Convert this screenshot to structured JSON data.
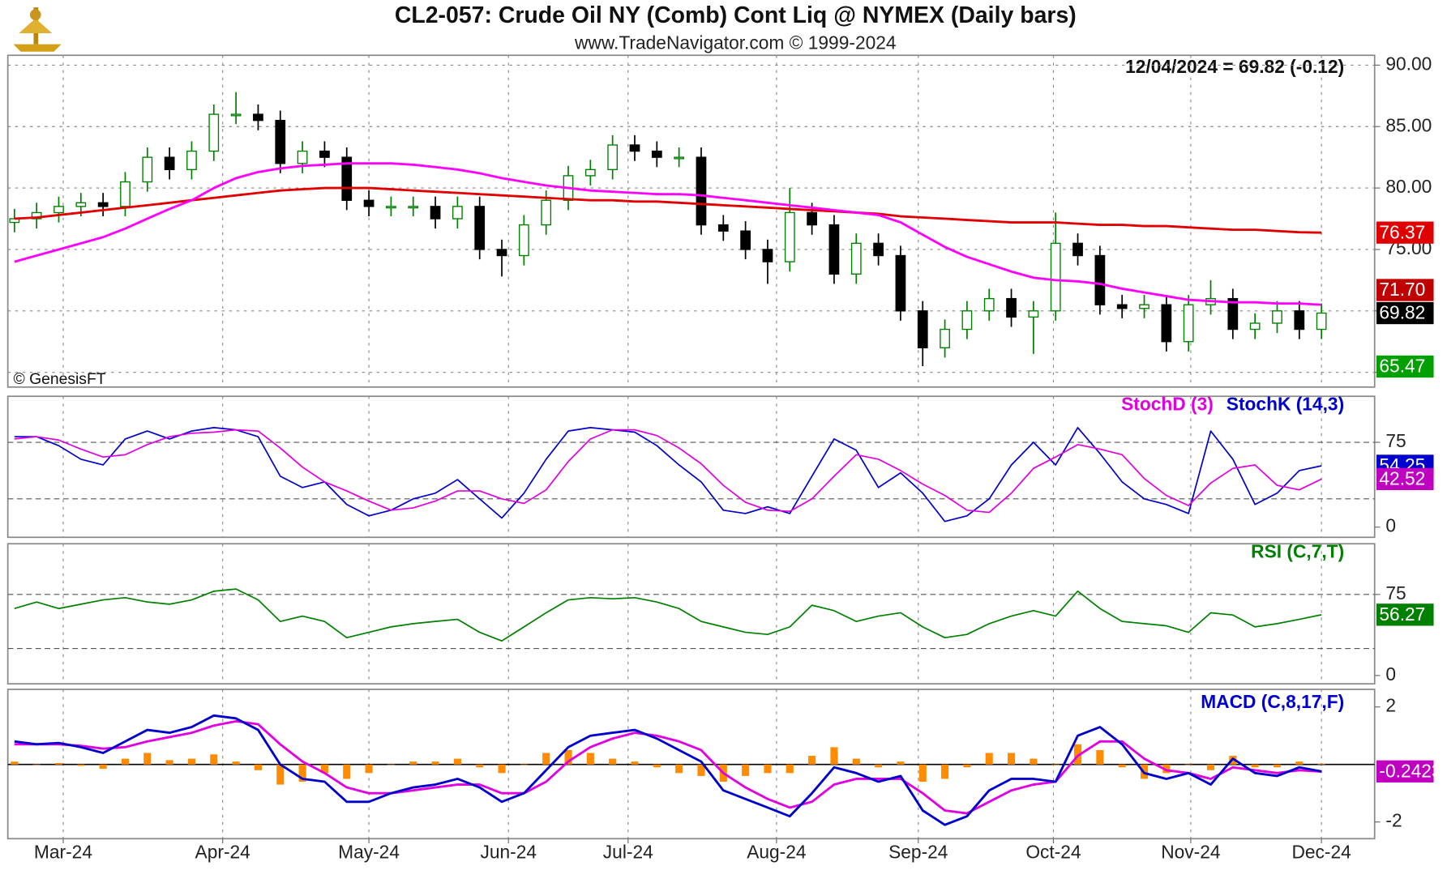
{
  "chart_data": [
    {
      "type": "candlestick",
      "title": "CL2-057:  Crude Oil NY (Comb) Cont Liq @ NYMEX  (Daily bars)",
      "subtitle": "www.TradeNavigator.com © 1999-2024",
      "annotation": "12/04/2024 = 69.82 (-0.12)",
      "credit": "© GenesisFT",
      "ylim": [
        63.8,
        90.8
      ],
      "yticks": [
        {
          "value": 65,
          "label": "65.00"
        },
        {
          "value": 70,
          "label": "70.00"
        },
        {
          "value": 75,
          "label": "75.00"
        },
        {
          "value": 80,
          "label": "80.00"
        },
        {
          "value": 85,
          "label": "85.00"
        },
        {
          "value": 90,
          "label": "90.00"
        }
      ],
      "grid": true,
      "up_color": "#008000",
      "down_color": "#000000",
      "open": [
        77.2,
        77.5,
        78,
        78.5,
        78.8,
        78.5,
        80.5,
        82.5,
        81.5,
        83,
        86,
        86,
        85.5,
        82,
        83,
        82.5,
        79,
        78.5,
        78.5,
        78.5,
        77.5,
        78.5,
        75,
        74.5,
        77,
        79,
        81,
        81.5,
        83.5,
        83,
        82.5,
        82.5,
        77,
        76.5,
        75,
        74,
        78,
        77,
        73,
        75.5,
        74.5,
        70,
        67,
        68.5,
        70,
        71,
        69.5,
        70,
        75.5,
        74.5,
        70.5,
        70.2,
        70.5,
        67.5,
        70.5,
        71,
        68.5,
        69,
        70,
        68.5
      ],
      "high": [
        78.3,
        78.8,
        79.3,
        79.6,
        79.6,
        81.3,
        83.3,
        83.3,
        83.8,
        86.8,
        87.8,
        86.8,
        86.3,
        83.8,
        83.8,
        83.3,
        79.8,
        79.3,
        79.3,
        79.3,
        79.3,
        79.3,
        75.8,
        77.8,
        79.8,
        81.8,
        82.3,
        84.3,
        84.3,
        83.8,
        83.3,
        83.3,
        77.8,
        77.3,
        75.8,
        80,
        78.8,
        77.8,
        76.3,
        76.3,
        75.3,
        70.8,
        69.3,
        70.8,
        71.8,
        71.8,
        70.8,
        78,
        76.3,
        75.3,
        71.3,
        71.3,
        71.3,
        71.3,
        72.5,
        71.8,
        69.8,
        70.8,
        70.8,
        70.6
      ],
      "low": [
        76.4,
        76.7,
        77.2,
        77.7,
        77.7,
        77.7,
        79.7,
        80.7,
        80.7,
        82.2,
        85.2,
        84.7,
        81.2,
        81.2,
        81.7,
        78.2,
        77.7,
        77.7,
        77.7,
        76.7,
        76.7,
        74.2,
        72.8,
        73.7,
        76.2,
        78.2,
        80.2,
        80.7,
        82.2,
        81.7,
        81.7,
        76.2,
        75.7,
        74.2,
        72.2,
        73.2,
        76.2,
        72.2,
        72.2,
        73.7,
        69.2,
        65.5,
        66.2,
        67.7,
        69.2,
        68.7,
        66.5,
        69.2,
        73.7,
        69.7,
        69.4,
        69.4,
        66.7,
        66.7,
        69.7,
        67.7,
        67.7,
        68.2,
        67.7,
        67.7
      ],
      "close": [
        77.5,
        78,
        78.5,
        78.8,
        78.5,
        80.5,
        82.5,
        81.5,
        83,
        86,
        86,
        85.5,
        82,
        83,
        82.5,
        79,
        78.5,
        78.5,
        78.5,
        77.5,
        78.5,
        75,
        74.5,
        77,
        79,
        81,
        81.5,
        83.5,
        83,
        82.5,
        82.5,
        77,
        76.5,
        75,
        74,
        78,
        77,
        73,
        75.5,
        74.5,
        70,
        67,
        68.5,
        70,
        71,
        69.5,
        70,
        75.5,
        74.5,
        70.5,
        70.2,
        70.5,
        67.5,
        70.5,
        71,
        68.5,
        69,
        70,
        68.5,
        69.82
      ],
      "series": [
        {
          "color": "#e00000",
          "values": [
            77.5,
            77.6,
            77.8,
            78,
            78.2,
            78.4,
            78.6,
            78.8,
            79,
            79.2,
            79.4,
            79.6,
            79.8,
            79.9,
            80,
            80,
            80,
            79.9,
            79.8,
            79.7,
            79.6,
            79.5,
            79.4,
            79.3,
            79.2,
            79.1,
            79,
            79,
            78.9,
            78.9,
            78.8,
            78.7,
            78.6,
            78.5,
            78.4,
            78.3,
            78.2,
            78.1,
            78,
            77.9,
            77.7,
            77.6,
            77.5,
            77.4,
            77.3,
            77.2,
            77.2,
            77.2,
            77.1,
            77,
            77,
            76.9,
            76.9,
            76.8,
            76.7,
            76.6,
            76.6,
            76.5,
            76.4,
            76.37
          ]
        },
        {
          "color": "#ff00ff",
          "values": [
            74,
            74.5,
            75,
            75.5,
            76,
            76.7,
            77.5,
            78.3,
            79,
            80,
            80.8,
            81.3,
            81.6,
            81.8,
            81.9,
            82,
            82,
            82,
            81.9,
            81.7,
            81.5,
            81.2,
            80.8,
            80.5,
            80.2,
            80,
            79.8,
            79.7,
            79.6,
            79.5,
            79.5,
            79.4,
            79.2,
            79,
            78.8,
            78.6,
            78.4,
            78.2,
            78,
            77.8,
            77.2,
            76.2,
            75.2,
            74.4,
            73.8,
            73.2,
            72.7,
            72.5,
            72.4,
            72.2,
            71.8,
            71.5,
            71.2,
            70.9,
            70.8,
            70.7,
            70.7,
            70.6,
            70.6,
            70.5
          ]
        }
      ],
      "last_labels": [
        {
          "value": 76.37,
          "color": "#e00000"
        },
        {
          "value": 71.7,
          "label": "71.70",
          "color": "#c00000"
        },
        {
          "value": 69.82,
          "color": "#000000"
        },
        {
          "value": 65.47,
          "color": "#00a000"
        }
      ]
    },
    {
      "type": "line",
      "ylim": [
        -9,
        115.7
      ],
      "yticks": [
        0,
        75
      ],
      "guides": [
        25,
        75
      ],
      "series": [
        {
          "name": "StochK (14,3)",
          "color": "#0000cc",
          "values": [
            80,
            80,
            72,
            60,
            55,
            78,
            85,
            78,
            85,
            88,
            86,
            80,
            45,
            35,
            40,
            20,
            10,
            15,
            25,
            30,
            42,
            25,
            8,
            30,
            60,
            85,
            88,
            86,
            84,
            72,
            55,
            40,
            15,
            12,
            18,
            12,
            45,
            78,
            68,
            35,
            48,
            30,
            5,
            10,
            25,
            55,
            75,
            55,
            88,
            65,
            40,
            25,
            20,
            12,
            85,
            60,
            20,
            30,
            50,
            54.25
          ]
        },
        {
          "name": "StochD (3)",
          "color": "#e000e0",
          "values": [
            78,
            80,
            77,
            69,
            62,
            64,
            73,
            80,
            83,
            84,
            86,
            85,
            70,
            53,
            40,
            32,
            23,
            15,
            17,
            23,
            32,
            32,
            25,
            21,
            33,
            58,
            78,
            86,
            86,
            81,
            70,
            56,
            37,
            22,
            15,
            14,
            25,
            45,
            64,
            60,
            50,
            38,
            28,
            15,
            13,
            30,
            52,
            62,
            73,
            69,
            64,
            43,
            28,
            19,
            39,
            52,
            55,
            37,
            33,
            42.52
          ]
        }
      ],
      "last_labels": [
        {
          "value": 54.25,
          "color": "#0000cc"
        },
        {
          "value": 42.52,
          "color": "#c000c0"
        }
      ]
    },
    {
      "type": "line",
      "ylim": [
        -7.7,
        121.9
      ],
      "yticks": [
        0,
        75
      ],
      "guides": [
        25,
        75
      ],
      "series": [
        {
          "name": "RSI (C,7,T)",
          "color": "#008000",
          "values": [
            62,
            68,
            62,
            66,
            70,
            72,
            68,
            66,
            70,
            78,
            80,
            70,
            50,
            55,
            50,
            35,
            40,
            45,
            48,
            50,
            52,
            40,
            32,
            45,
            58,
            70,
            72,
            71,
            72,
            68,
            62,
            50,
            45,
            40,
            38,
            45,
            65,
            60,
            50,
            55,
            58,
            45,
            35,
            38,
            48,
            55,
            60,
            55,
            78,
            62,
            50,
            48,
            46,
            40,
            58,
            56,
            45,
            48,
            52,
            56.27
          ]
        }
      ],
      "last_labels": [
        {
          "value": 56.27,
          "color": "#008000"
        }
      ]
    },
    {
      "type": "line",
      "ylim": [
        -2.58,
        2.61
      ],
      "yticks": [
        -2,
        2
      ],
      "zero_line": 0,
      "xlim": [
        -0.3,
        61.4
      ],
      "xticks": [
        {
          "value": 2.2,
          "label": "Mar-24"
        },
        {
          "value": 9.4,
          "label": "Apr-24"
        },
        {
          "value": 16,
          "label": "May-24"
        },
        {
          "value": 22.3,
          "label": "Jun-24"
        },
        {
          "value": 27.7,
          "label": "Jul-24"
        },
        {
          "value": 34.4,
          "label": "Aug-24"
        },
        {
          "value": 40.8,
          "label": "Sep-24"
        },
        {
          "value": 46.9,
          "label": "Oct-24"
        },
        {
          "value": 53.1,
          "label": "Nov-24"
        },
        {
          "value": 59,
          "label": "Dec-24"
        }
      ],
      "series": [
        {
          "kind": "bar",
          "color": "#ff8c00",
          "values": [
            0.1,
            0,
            0.05,
            -0.05,
            -0.15,
            0.2,
            0.4,
            0.15,
            0.2,
            0.35,
            0.1,
            -0.2,
            -0.7,
            -0.6,
            -0.3,
            -0.5,
            -0.3,
            0,
            0.1,
            0.1,
            0.2,
            -0.1,
            -0.3,
            0,
            0.4,
            0.5,
            0.4,
            0.2,
            0.1,
            -0.1,
            -0.3,
            -0.4,
            -0.6,
            -0.4,
            -0.3,
            -0.3,
            0.3,
            0.6,
            0.2,
            -0.1,
            0.1,
            -0.6,
            -0.5,
            -0.1,
            0.4,
            0.4,
            0.2,
            0,
            0.7,
            0.5,
            -0.1,
            -0.5,
            -0.3,
            0,
            -0.2,
            0.3,
            -0.1,
            -0.1,
            0.1,
            0.01
          ]
        },
        {
          "color": "#e000e0",
          "values": [
            0.7,
            0.7,
            0.7,
            0.65,
            0.55,
            0.6,
            0.8,
            0.95,
            1.1,
            1.35,
            1.5,
            1.4,
            0.7,
            0.1,
            -0.3,
            -0.8,
            -1,
            -1,
            -0.9,
            -0.8,
            -0.7,
            -0.7,
            -1,
            -1,
            -0.6,
            0.1,
            0.6,
            0.9,
            1.1,
            1,
            0.8,
            0.5,
            -0.3,
            -0.8,
            -1.2,
            -1.5,
            -1.3,
            -0.7,
            -0.5,
            -0.5,
            -0.5,
            -1,
            -1.6,
            -1.7,
            -1.3,
            -0.9,
            -0.7,
            -0.6,
            0.3,
            0.8,
            0.8,
            0.2,
            -0.2,
            -0.3,
            -0.5,
            -0.1,
            -0.2,
            -0.3,
            -0.2,
            -0.25
          ]
        },
        {
          "name": "MACD (C,8,17,F)",
          "color": "#0000cc",
          "values": [
            0.8,
            0.7,
            0.75,
            0.6,
            0.4,
            0.8,
            1.2,
            1.1,
            1.3,
            1.7,
            1.6,
            1.2,
            0,
            -0.5,
            -0.6,
            -1.3,
            -1.3,
            -1,
            -0.8,
            -0.7,
            -0.5,
            -0.8,
            -1.3,
            -1,
            -0.2,
            0.6,
            1,
            1.1,
            1.2,
            0.9,
            0.5,
            0.1,
            -0.9,
            -1.2,
            -1.5,
            -1.8,
            -1,
            -0.1,
            -0.3,
            -0.6,
            -0.4,
            -1.6,
            -2.1,
            -1.8,
            -0.9,
            -0.5,
            -0.5,
            -0.6,
            1,
            1.3,
            0.7,
            -0.3,
            -0.5,
            -0.3,
            -0.7,
            0.2,
            -0.3,
            -0.4,
            -0.1,
            -0.2423
          ]
        }
      ],
      "last_labels": [
        {
          "value": -0.2423,
          "color": "#c000c0"
        }
      ]
    }
  ]
}
